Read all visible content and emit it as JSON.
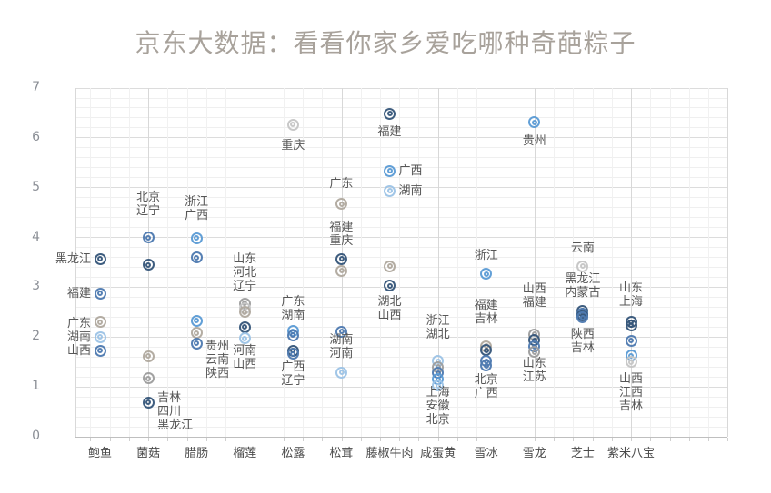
{
  "title": "京东大数据：看看你家乡爱吃哪种奇葩粽子",
  "colors": {
    "navy": "#35567a",
    "steel": "#4e7ab0",
    "blue": "#5b9bd5",
    "lightblue": "#9dc3e6",
    "gray": "#9e9e9e",
    "warmgray": "#b0a99f",
    "lightgray": "#c6c6c6",
    "grid_minor": "#efefef",
    "grid_major": "#dcdcdc",
    "axis": "#bfbfbf",
    "title_text": "#a8a29b",
    "label_text": "#565656"
  },
  "chart_data": {
    "type": "scatter",
    "title": "京东大数据：看看你家乡爱吃哪种奇葩粽子",
    "ylim": [
      0,
      7
    ],
    "yticks": [
      0,
      1,
      2,
      3,
      4,
      5,
      6,
      7
    ],
    "grid": "on",
    "minor_grid_step": 0.2,
    "legend": "none",
    "categories": [
      "鲍鱼",
      "菌菇",
      "腊肠",
      "榴莲",
      "松露",
      "松茸",
      "藤椒牛肉",
      "咸蛋黄",
      "雪冰",
      "雪龙",
      "芝士",
      "紫米八宝"
    ],
    "points": [
      {
        "cat": 0,
        "province": "黑龙江",
        "value": 3.57,
        "color": "navy"
      },
      {
        "cat": 0,
        "province": "福建",
        "value": 2.88,
        "color": "steel"
      },
      {
        "cat": 0,
        "province": "广东",
        "value": 2.3,
        "color": "warmgray"
      },
      {
        "cat": 0,
        "province": "湖南",
        "value": 2.0,
        "color": "lightblue"
      },
      {
        "cat": 0,
        "province": "山西",
        "value": 1.73,
        "color": "steel"
      },
      {
        "cat": 1,
        "province": "北京",
        "value": 4.0,
        "color": "steel"
      },
      {
        "cat": 1,
        "province": "辽宁",
        "value": 3.45,
        "color": "navy"
      },
      {
        "cat": 1,
        "province": "吉林",
        "value": 1.62,
        "color": "warmgray"
      },
      {
        "cat": 1,
        "province": "四川",
        "value": 1.17,
        "color": "gray"
      },
      {
        "cat": 1,
        "province": "黑龙江",
        "value": 0.69,
        "color": "navy"
      },
      {
        "cat": 2,
        "province": "浙江",
        "value": 3.99,
        "color": "blue"
      },
      {
        "cat": 2,
        "province": "广西",
        "value": 3.6,
        "color": "steel"
      },
      {
        "cat": 2,
        "province": "贵州",
        "value": 2.33,
        "color": "blue"
      },
      {
        "cat": 2,
        "province": "云南",
        "value": 2.08,
        "color": "warmgray"
      },
      {
        "cat": 2,
        "province": "陕西",
        "value": 1.87,
        "color": "steel"
      },
      {
        "cat": 3,
        "province": "山东",
        "value": 2.68,
        "color": "gray"
      },
      {
        "cat": 3,
        "province": "河北",
        "value": 2.58,
        "color": "lightgray"
      },
      {
        "cat": 3,
        "province": "辽宁",
        "value": 2.5,
        "color": "warmgray"
      },
      {
        "cat": 3,
        "province": "河南",
        "value": 2.2,
        "color": "navy"
      },
      {
        "cat": 3,
        "province": "山西",
        "value": 1.97,
        "color": "lightblue"
      },
      {
        "cat": 4,
        "province": "重庆",
        "value": 6.27,
        "color": "lightgray"
      },
      {
        "cat": 4,
        "province": "广东",
        "value": 2.12,
        "color": "blue"
      },
      {
        "cat": 4,
        "province": "湖南",
        "value": 2.04,
        "color": "steel"
      },
      {
        "cat": 4,
        "province": "广西",
        "value": 1.73,
        "color": "navy"
      },
      {
        "cat": 4,
        "province": "辽宁",
        "value": 1.66,
        "color": "steel"
      },
      {
        "cat": 5,
        "province": "广东",
        "value": 4.67,
        "color": "warmgray"
      },
      {
        "cat": 5,
        "province": "福建",
        "value": 3.57,
        "color": "navy"
      },
      {
        "cat": 5,
        "province": "重庆",
        "value": 3.33,
        "color": "warmgray"
      },
      {
        "cat": 5,
        "province": "湖南",
        "value": 2.11,
        "color": "steel"
      },
      {
        "cat": 5,
        "province": "河南",
        "value": 1.29,
        "color": "lightblue"
      },
      {
        "cat": 6,
        "province": "福建",
        "value": 6.49,
        "color": "navy"
      },
      {
        "cat": 6,
        "province": "广西",
        "value": 5.34,
        "color": "blue"
      },
      {
        "cat": 6,
        "province": "湖南",
        "value": 4.94,
        "color": "lightblue"
      },
      {
        "cat": 6,
        "province": "湖北",
        "value": 3.42,
        "color": "warmgray"
      },
      {
        "cat": 6,
        "province": "山西",
        "value": 3.03,
        "color": "navy"
      },
      {
        "cat": 7,
        "province": "浙江",
        "value": 1.52,
        "color": "lightblue"
      },
      {
        "cat": 7,
        "province": "湖北",
        "value": 1.4,
        "color": "gray"
      },
      {
        "cat": 7,
        "province": "上海",
        "value": 1.28,
        "color": "steel"
      },
      {
        "cat": 7,
        "province": "安徽",
        "value": 1.15,
        "color": "blue"
      },
      {
        "cat": 7,
        "province": "北京",
        "value": 1.03,
        "color": "lightblue"
      },
      {
        "cat": 8,
        "province": "浙江",
        "value": 3.27,
        "color": "blue"
      },
      {
        "cat": 8,
        "province": "福建",
        "value": 1.82,
        "color": "warmgray"
      },
      {
        "cat": 8,
        "province": "吉林",
        "value": 1.74,
        "color": "navy"
      },
      {
        "cat": 8,
        "province": "北京",
        "value": 1.52,
        "color": "steel"
      },
      {
        "cat": 8,
        "province": "广西",
        "value": 1.43,
        "color": "steel"
      },
      {
        "cat": 9,
        "province": "贵州",
        "value": 6.31,
        "color": "blue"
      },
      {
        "cat": 9,
        "province": "山西",
        "value": 2.06,
        "color": "gray"
      },
      {
        "cat": 9,
        "province": "福建",
        "value": 1.94,
        "color": "navy"
      },
      {
        "cat": 9,
        "province": "山东",
        "value": 1.81,
        "color": "steel"
      },
      {
        "cat": 9,
        "province": "江苏",
        "value": 1.7,
        "color": "gray"
      },
      {
        "cat": 10,
        "province": "云南",
        "value": 3.42,
        "color": "lightgray"
      },
      {
        "cat": 10,
        "province": "黑龙江",
        "value": 2.53,
        "color": "navy"
      },
      {
        "cat": 10,
        "province": "内蒙古",
        "value": 2.48,
        "color": "steel"
      },
      {
        "cat": 10,
        "province": "陕西",
        "value": 2.43,
        "color": "navy"
      },
      {
        "cat": 10,
        "province": "吉林",
        "value": 2.39,
        "color": "steel"
      },
      {
        "cat": 11,
        "province": "山东",
        "value": 2.3,
        "color": "navy"
      },
      {
        "cat": 11,
        "province": "上海",
        "value": 2.24,
        "color": "navy"
      },
      {
        "cat": 11,
        "province": "山西",
        "value": 1.93,
        "color": "steel"
      },
      {
        "cat": 11,
        "province": "江西",
        "value": 1.63,
        "color": "blue"
      },
      {
        "cat": 11,
        "province": "吉林",
        "value": 1.5,
        "color": "lightgray"
      }
    ],
    "annotations": [
      {
        "cat": 0,
        "lines": [
          "黑龙江"
        ],
        "value": 3.57,
        "anchor": "end"
      },
      {
        "cat": 0,
        "lines": [
          "福建"
        ],
        "value": 2.88,
        "anchor": "end"
      },
      {
        "cat": 0,
        "lines": [
          "广东",
          "湖南",
          "山西"
        ],
        "value": 2.0,
        "anchor": "end"
      },
      {
        "cat": 1,
        "lines": [
          "北京",
          "辽宁"
        ],
        "value": 4.67,
        "anchor": "mid"
      },
      {
        "cat": 1,
        "lines": [
          "吉林",
          "四川",
          "黑龙江"
        ],
        "value": 0.5,
        "anchor": "start"
      },
      {
        "cat": 2,
        "lines": [
          "浙江",
          "广西"
        ],
        "value": 4.58,
        "anchor": "mid"
      },
      {
        "cat": 2,
        "lines": [
          "贵州",
          "云南",
          "陕西"
        ],
        "value": 1.55,
        "anchor": "start"
      },
      {
        "cat": 3,
        "lines": [
          "山东",
          "河北",
          "辽宁"
        ],
        "value": 3.3,
        "anchor": "mid"
      },
      {
        "cat": 3,
        "lines": [
          "河南",
          "山西"
        ],
        "value": 1.58,
        "anchor": "mid"
      },
      {
        "cat": 4,
        "lines": [
          "重庆"
        ],
        "value": 5.85,
        "anchor": "mid"
      },
      {
        "cat": 4,
        "lines": [
          "广东",
          "湖南"
        ],
        "value": 2.57,
        "anchor": "mid"
      },
      {
        "cat": 4,
        "lines": [
          "广西",
          "辽宁"
        ],
        "value": 1.25,
        "anchor": "mid"
      },
      {
        "cat": 5,
        "lines": [
          "广东"
        ],
        "value": 5.07,
        "anchor": "mid"
      },
      {
        "cat": 5,
        "lines": [
          "福建",
          "重庆"
        ],
        "value": 4.07,
        "anchor": "mid"
      },
      {
        "cat": 5,
        "lines": [
          "湖南",
          "河南"
        ],
        "value": 1.8,
        "anchor": "mid"
      },
      {
        "cat": 6,
        "lines": [
          "福建"
        ],
        "value": 6.12,
        "anchor": "mid"
      },
      {
        "cat": 6,
        "lines": [
          "广西"
        ],
        "value": 5.34,
        "anchor": "start"
      },
      {
        "cat": 6,
        "lines": [
          "湖南"
        ],
        "value": 4.94,
        "anchor": "start"
      },
      {
        "cat": 6,
        "lines": [
          "湖北",
          "山西"
        ],
        "value": 2.57,
        "anchor": "mid"
      },
      {
        "cat": 7,
        "lines": [
          "浙江",
          "湖北"
        ],
        "value": 2.18,
        "anchor": "mid"
      },
      {
        "cat": 7,
        "lines": [
          "上海",
          "安徽",
          "北京"
        ],
        "value": 0.62,
        "anchor": "mid"
      },
      {
        "cat": 8,
        "lines": [
          "浙江"
        ],
        "value": 3.63,
        "anchor": "mid"
      },
      {
        "cat": 8,
        "lines": [
          "福建",
          "吉林"
        ],
        "value": 2.49,
        "anchor": "mid"
      },
      {
        "cat": 8,
        "lines": [
          "北京",
          "广西"
        ],
        "value": 1.0,
        "anchor": "mid"
      },
      {
        "cat": 9,
        "lines": [
          "贵州"
        ],
        "value": 5.94,
        "anchor": "mid"
      },
      {
        "cat": 9,
        "lines": [
          "山西",
          "福建"
        ],
        "value": 2.82,
        "anchor": "mid"
      },
      {
        "cat": 9,
        "lines": [
          "山东",
          "江苏"
        ],
        "value": 1.34,
        "anchor": "mid"
      },
      {
        "cat": 10,
        "lines": [
          "云南"
        ],
        "value": 3.79,
        "anchor": "mid"
      },
      {
        "cat": 10,
        "lines": [
          "黑龙江",
          "内蒙古"
        ],
        "value": 3.02,
        "anchor": "mid"
      },
      {
        "cat": 10,
        "lines": [
          "陕西",
          "吉林"
        ],
        "value": 1.92,
        "anchor": "mid"
      },
      {
        "cat": 11,
        "lines": [
          "山东",
          "上海"
        ],
        "value": 2.85,
        "anchor": "mid"
      },
      {
        "cat": 11,
        "lines": [
          "山西",
          "江西",
          "吉林"
        ],
        "value": 0.88,
        "anchor": "mid"
      }
    ]
  }
}
